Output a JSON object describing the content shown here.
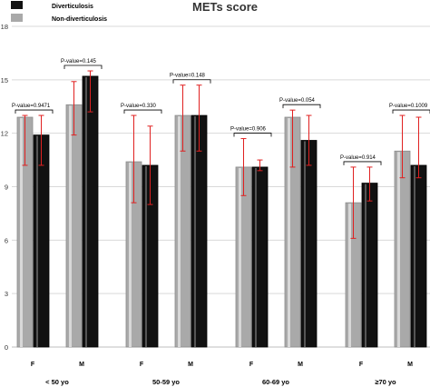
{
  "chart_data": {
    "type": "bar",
    "title": "METs score",
    "ylim": [
      0,
      18
    ],
    "yticks": [
      "0",
      "3",
      "6",
      "9",
      "12",
      "15",
      "18"
    ],
    "grid": true,
    "legend_position": "top-left",
    "series": [
      {
        "name": "Diverticulosis",
        "color": "#111111"
      },
      {
        "name": "Non-diverticulosis",
        "color": "#a9a9a9"
      }
    ],
    "groups": [
      {
        "label": "< 50 yo",
        "subgroups": [
          {
            "sex": "F",
            "non_divert": 12.9,
            "non_divert_err": [
              10.2,
              13.0
            ],
            "divert": 11.9,
            "divert_err": [
              10.2,
              13.0
            ],
            "p_label": "P-value=0.9471"
          },
          {
            "sex": "M",
            "non_divert": 13.6,
            "non_divert_err": [
              11.9,
              14.9
            ],
            "divert": 15.2,
            "divert_err": [
              13.2,
              15.5
            ],
            "p_label": "P-value=0.145"
          }
        ]
      },
      {
        "label": "50-59 yo",
        "subgroups": [
          {
            "sex": "F",
            "non_divert": 10.4,
            "non_divert_err": [
              8.1,
              13.0
            ],
            "divert": 10.2,
            "divert_err": [
              8.0,
              12.4
            ],
            "p_label": "P-value=0.330"
          },
          {
            "sex": "M",
            "non_divert": 13.0,
            "non_divert_err": [
              11.0,
              14.7
            ],
            "divert": 13.0,
            "divert_err": [
              11.0,
              14.7
            ],
            "p_label": "P-value=0.148"
          }
        ]
      },
      {
        "label": "60-69 yo",
        "subgroups": [
          {
            "sex": "F",
            "non_divert": 10.1,
            "non_divert_err": [
              8.5,
              11.7
            ],
            "divert": 10.1,
            "divert_err": [
              9.9,
              10.5
            ],
            "p_label": "P-value=0.906"
          },
          {
            "sex": "M",
            "non_divert": 12.9,
            "non_divert_err": [
              10.1,
              13.3
            ],
            "divert": 11.6,
            "divert_err": [
              10.2,
              13.0
            ],
            "p_label": "P-value=0.054"
          }
        ]
      },
      {
        "label": "≥70 yo",
        "subgroups": [
          {
            "sex": "F",
            "non_divert": 8.1,
            "non_divert_err": [
              6.1,
              10.1
            ],
            "divert": 9.2,
            "divert_err": [
              8.2,
              10.1
            ],
            "p_label": "P-value=0.914"
          },
          {
            "sex": "M",
            "non_divert": 11.0,
            "non_divert_err": [
              9.5,
              13.0
            ],
            "divert": 10.2,
            "divert_err": [
              9.5,
              12.9
            ],
            "p_label": "P-value=0.1009"
          }
        ]
      }
    ]
  }
}
